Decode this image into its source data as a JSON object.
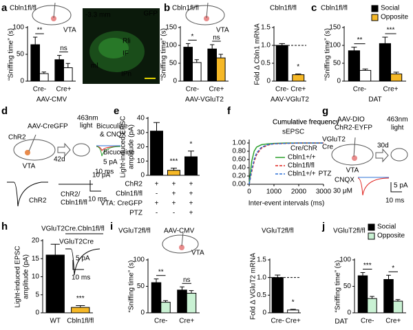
{
  "chart_data": [
    {
      "type": "bar",
      "title": "Cbln1fl/fl",
      "ylabel": "“Sniffing time” (s)",
      "xlabel": "AAV-CMV",
      "categories": [
        "Cre-",
        "Cre+"
      ],
      "series": [
        {
          "color": "#000000",
          "values": [
            68,
            40
          ],
          "errors": [
            14,
            8
          ]
        },
        {
          "color": "#ffffff",
          "values": [
            14,
            25
          ],
          "errors": [
            3,
            8
          ]
        }
      ],
      "ylim": [
        0,
        100
      ],
      "yticks": [
        0,
        50,
        100
      ],
      "annotations": [
        "**",
        "ns"
      ]
    },
    {
      "type": "bar",
      "title": "Cbln1fl/fl",
      "ylabel": "“Sniffing time” (s)",
      "xlabel": "AAV-VGluT2",
      "categories": [
        "Cre-",
        "Cre+"
      ],
      "series": [
        {
          "color": "#000000",
          "values": [
            95,
            90
          ],
          "errors": [
            10,
            12
          ]
        },
        {
          "colors": [
            "#ffffff",
            "#f6b826"
          ],
          "values": [
            52,
            65
          ],
          "errors": [
            8,
            10
          ]
        }
      ],
      "ylim": [
        0,
        150
      ],
      "yticks": [
        0,
        50,
        100,
        150
      ],
      "annotations": [
        "*",
        "ns"
      ]
    },
    {
      "type": "bar",
      "title": "Cbln1fl/fl",
      "ylabel": "Fold Δ Cbln1 mRNA",
      "xlabel": "AAV-VGluT2",
      "categories": [
        "Cre-",
        "Cre+"
      ],
      "series": [
        {
          "colors": [
            "#000000",
            "#f6b826"
          ],
          "values": [
            1.0,
            0.18
          ],
          "errors": [
            0.05,
            0.02
          ]
        }
      ],
      "ylim": [
        0,
        1.5
      ],
      "yticks": [
        0,
        0.5,
        {
          "value": 1,
          "label": "1.0"
        },
        1.5
      ],
      "refline": 1,
      "annotations": [
        null,
        "*"
      ]
    },
    {
      "type": "bar",
      "title": "Cbln1fl/fl",
      "ylabel": "“Sniffing time” (s)",
      "xlabel": "DAT",
      "categories": [
        "Cre-",
        "Cre+"
      ],
      "series": [
        {
          "name": "Social",
          "color": "#000000",
          "values": [
            85,
            105
          ],
          "errors": [
            10,
            18
          ]
        },
        {
          "name": "Opposite",
          "color": "#f6b826",
          "colors": [
            "#ffffff",
            "#f6b826"
          ],
          "values": [
            30,
            20
          ],
          "errors": [
            4,
            5
          ]
        }
      ],
      "ylim": [
        0,
        150
      ],
      "yticks": [
        0,
        50,
        100,
        150
      ],
      "annotations": [
        "**",
        "***"
      ],
      "legend": "top"
    },
    {
      "type": "bar",
      "ylabel": [
        "Light-induced EPSC",
        "amplitude (pA)"
      ],
      "series": [
        {
          "colors": [
            "#000000",
            "#f6b826",
            "#000000"
          ],
          "values": [
            31,
            3.5,
            13
          ],
          "errors": [
            6,
            1.5,
            4
          ]
        }
      ],
      "ylim": [
        0,
        40
      ],
      "yticks": [
        0,
        10,
        20,
        30,
        40
      ],
      "annotations": [
        null,
        "***",
        "*"
      ],
      "rows": [
        {
          "label": "ChR2",
          "marks": [
            "+",
            "+",
            "+"
          ]
        },
        {
          "label": "Cbln1fl/fl",
          "marks": [
            "-",
            "+",
            "+"
          ]
        },
        {
          "label": "VTA: CreGFP",
          "marks": [
            "+",
            "+",
            "+"
          ]
        },
        {
          "label": "PTZ",
          "marks": [
            "-",
            "-",
            "+"
          ],
          "color": "#e0201b"
        }
      ]
    },
    {
      "type": "line",
      "title": "Cumulative frequency",
      "subtitle": "sEPSC",
      "xlabel": "Inter-event intervals (ms)",
      "legend_title": "Cre/ChR",
      "x": [
        0,
        100,
        200,
        300,
        500,
        750,
        1000,
        1500,
        2000,
        3000
      ],
      "series": [
        {
          "name": "Cbln1+/+",
          "color": "#2ca02c",
          "values": [
            0,
            0.55,
            0.8,
            0.9,
            0.96,
            0.98,
            0.99,
            1,
            1,
            1
          ]
        },
        {
          "name": "Cbln1fl/fl",
          "color": "#e0201b",
          "dash": true,
          "values": [
            0,
            0.3,
            0.55,
            0.72,
            0.88,
            0.95,
            0.98,
            0.99,
            1,
            1
          ]
        },
        {
          "name": "Cbln1+/+",
          "tag": "PTZ",
          "color": "#2a6fd6",
          "dash": true,
          "values": [
            0,
            0.35,
            0.6,
            0.76,
            0.9,
            0.96,
            0.98,
            0.99,
            1,
            1
          ]
        }
      ],
      "xlim": [
        0,
        3000
      ],
      "xticks": [
        0,
        1000,
        2000,
        3000
      ],
      "ylim": [
        0,
        1.05
      ],
      "yticks": [
        {
          "value": 0,
          "label": "0.00"
        },
        {
          "value": 0.2,
          "label": "0.20"
        },
        {
          "value": 0.4,
          "label": "0.40"
        },
        {
          "value": 0.6,
          "label": "0.60"
        },
        {
          "value": 0.8,
          "label": "0.80"
        },
        {
          "value": 1,
          "label": "1.00"
        }
      ]
    },
    {
      "type": "bar",
      "ylabel": [
        "Light-induced EPSC",
        "amplitude (pA)"
      ],
      "categories": [
        "WT",
        "Cbln1fl/fl"
      ],
      "series": [
        {
          "colors": [
            "#000000",
            "#f6b826"
          ],
          "values": [
            16,
            1.5
          ],
          "errors": [
            3,
            0.5
          ]
        }
      ],
      "ylim": [
        0,
        20
      ],
      "yticks": [
        0,
        5,
        10,
        15,
        20
      ],
      "annotations": [
        null,
        "***"
      ]
    },
    {
      "type": "bar",
      "title": "VGluT2fl/fl",
      "ylabel": "“Sniffing time” (s)",
      "categories": [
        "Cre-",
        "Cre+"
      ],
      "series": [
        {
          "color": "#000000",
          "values": [
            57,
            43
          ],
          "errors": [
            7,
            6
          ]
        },
        {
          "color": "#c9f1d3",
          "values": [
            20,
            37
          ],
          "errors": [
            3,
            5
          ]
        }
      ],
      "ylim": [
        0,
        100
      ],
      "yticks": [
        0,
        50,
        100
      ],
      "annotations": [
        "**",
        "ns"
      ]
    },
    {
      "type": "bar",
      "title": "VGluT2fl/fl",
      "ylabel": "Fold Δ VGluT2 mRNA",
      "categories": [
        "Cre-",
        "Cre+"
      ],
      "series": [
        {
          "colors": [
            "#000000",
            "#ffffff"
          ],
          "values": [
            1.0,
            0.08
          ],
          "errors": [
            0.07,
            0.02
          ]
        }
      ],
      "ylim": [
        0,
        1.5
      ],
      "yticks": [
        0,
        0.5,
        {
          "value": 1,
          "label": "1.0"
        },
        1.5
      ],
      "refline": 1,
      "annotations": [
        null,
        "*"
      ]
    },
    {
      "type": "bar",
      "title": "VGluT2fl/fl",
      "ylabel": "“Sniffing time” (s)",
      "xlabel": "DAT",
      "categories": [
        "Cre-",
        "Cre+"
      ],
      "series": [
        {
          "name": "Social",
          "color": "#000000",
          "values": [
            70,
            63
          ],
          "errors": [
            6,
            8
          ]
        },
        {
          "name": "Opposite",
          "color": "#c9f1d3",
          "values": [
            27,
            22
          ],
          "errors": [
            4,
            3
          ]
        }
      ],
      "ylim": [
        0,
        100
      ],
      "yticks": [
        0,
        50,
        100
      ],
      "annotations": [
        "***",
        "*"
      ],
      "legend": "top"
    }
  ],
  "labels": [
    "a",
    "b",
    "c",
    "d",
    "e",
    "f",
    "g",
    "h",
    "i",
    "j",
    "VTA",
    "-3.3 mm",
    "GFP",
    "Rli",
    "IF",
    "ml",
    "IPn",
    "VTA",
    "ChR2",
    "AAV-CreGFP",
    "463nm",
    "light",
    "Bicuculine",
    "& CNQX",
    "Bicuculine",
    "5 pA",
    "10 ms",
    "42d",
    "VTA",
    "ChR2",
    "ChR2/",
    "Cbln1fl/fl",
    "10 pA",
    "10 ms",
    "AAV-DIO",
    "ChR2-EYFP",
    "VGluT2",
    "Cre",
    "30d",
    "463nm",
    "light",
    "VTA",
    "CNQX",
    "30 μM",
    "5 pA",
    "10 ms",
    "VGluT2Cre.Cbln1fl/fl",
    "VGluT2Cre",
    "5 pA",
    "10 ms",
    "AAV-CMV",
    "VTA"
  ]
}
